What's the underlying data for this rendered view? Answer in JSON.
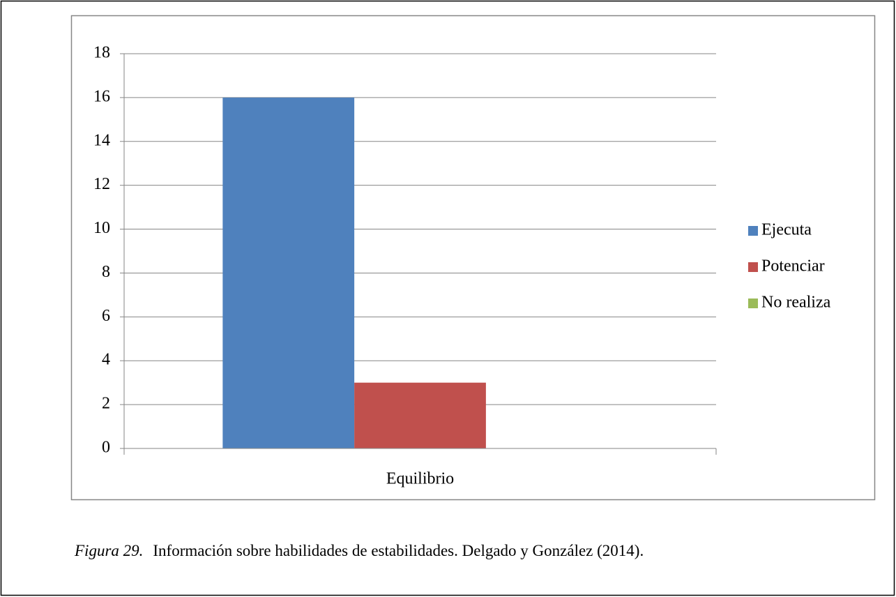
{
  "chart_data": {
    "type": "bar",
    "categories": [
      "Equilibrio"
    ],
    "series": [
      {
        "name": "Ejecuta",
        "color": "#4f81bd",
        "values": [
          16
        ]
      },
      {
        "name": "Potenciar",
        "color": "#c0504d",
        "values": [
          3
        ]
      },
      {
        "name": "No realiza",
        "color": "#9bbb59",
        "values": [
          0
        ]
      }
    ],
    "ylim": [
      0,
      18
    ],
    "yticks": [
      0,
      2,
      4,
      6,
      8,
      10,
      12,
      14,
      16,
      18
    ],
    "grid": true,
    "legend": "right"
  },
  "caption": {
    "label": "Figura 29.",
    "text": "Información sobre habilidades de estabilidades. Delgado y González (2014)."
  }
}
